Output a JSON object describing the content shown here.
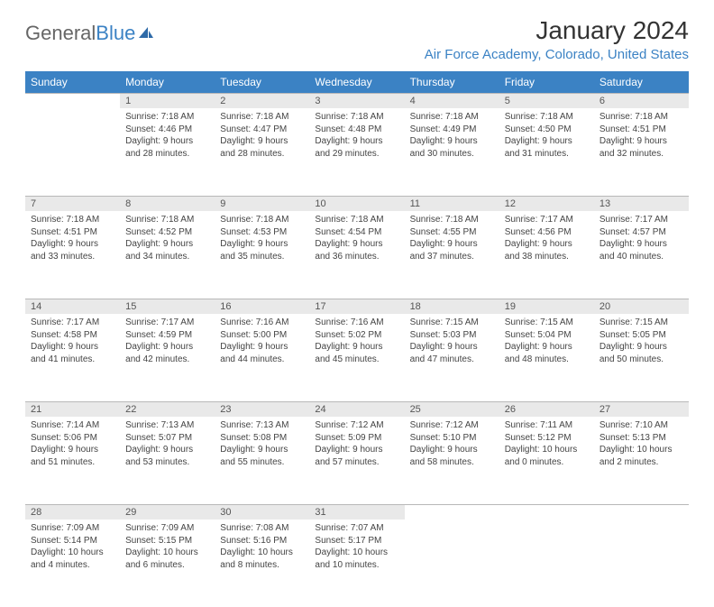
{
  "logo": {
    "part1": "General",
    "part2": "Blue"
  },
  "title": "January 2024",
  "location": "Air Force Academy, Colorado, United States",
  "day_headers": [
    "Sunday",
    "Monday",
    "Tuesday",
    "Wednesday",
    "Thursday",
    "Friday",
    "Saturday"
  ],
  "header_bg": "#3b82c4",
  "daynum_bg": "#e9e9e9",
  "weeks": [
    {
      "nums": [
        "",
        "1",
        "2",
        "3",
        "4",
        "5",
        "6"
      ],
      "cells": [
        {
          "sunrise": "",
          "sunset": "",
          "daylight": ""
        },
        {
          "sunrise": "Sunrise: 7:18 AM",
          "sunset": "Sunset: 4:46 PM",
          "daylight": "Daylight: 9 hours and 28 minutes."
        },
        {
          "sunrise": "Sunrise: 7:18 AM",
          "sunset": "Sunset: 4:47 PM",
          "daylight": "Daylight: 9 hours and 28 minutes."
        },
        {
          "sunrise": "Sunrise: 7:18 AM",
          "sunset": "Sunset: 4:48 PM",
          "daylight": "Daylight: 9 hours and 29 minutes."
        },
        {
          "sunrise": "Sunrise: 7:18 AM",
          "sunset": "Sunset: 4:49 PM",
          "daylight": "Daylight: 9 hours and 30 minutes."
        },
        {
          "sunrise": "Sunrise: 7:18 AM",
          "sunset": "Sunset: 4:50 PM",
          "daylight": "Daylight: 9 hours and 31 minutes."
        },
        {
          "sunrise": "Sunrise: 7:18 AM",
          "sunset": "Sunset: 4:51 PM",
          "daylight": "Daylight: 9 hours and 32 minutes."
        }
      ]
    },
    {
      "nums": [
        "7",
        "8",
        "9",
        "10",
        "11",
        "12",
        "13"
      ],
      "cells": [
        {
          "sunrise": "Sunrise: 7:18 AM",
          "sunset": "Sunset: 4:51 PM",
          "daylight": "Daylight: 9 hours and 33 minutes."
        },
        {
          "sunrise": "Sunrise: 7:18 AM",
          "sunset": "Sunset: 4:52 PM",
          "daylight": "Daylight: 9 hours and 34 minutes."
        },
        {
          "sunrise": "Sunrise: 7:18 AM",
          "sunset": "Sunset: 4:53 PM",
          "daylight": "Daylight: 9 hours and 35 minutes."
        },
        {
          "sunrise": "Sunrise: 7:18 AM",
          "sunset": "Sunset: 4:54 PM",
          "daylight": "Daylight: 9 hours and 36 minutes."
        },
        {
          "sunrise": "Sunrise: 7:18 AM",
          "sunset": "Sunset: 4:55 PM",
          "daylight": "Daylight: 9 hours and 37 minutes."
        },
        {
          "sunrise": "Sunrise: 7:17 AM",
          "sunset": "Sunset: 4:56 PM",
          "daylight": "Daylight: 9 hours and 38 minutes."
        },
        {
          "sunrise": "Sunrise: 7:17 AM",
          "sunset": "Sunset: 4:57 PM",
          "daylight": "Daylight: 9 hours and 40 minutes."
        }
      ]
    },
    {
      "nums": [
        "14",
        "15",
        "16",
        "17",
        "18",
        "19",
        "20"
      ],
      "cells": [
        {
          "sunrise": "Sunrise: 7:17 AM",
          "sunset": "Sunset: 4:58 PM",
          "daylight": "Daylight: 9 hours and 41 minutes."
        },
        {
          "sunrise": "Sunrise: 7:17 AM",
          "sunset": "Sunset: 4:59 PM",
          "daylight": "Daylight: 9 hours and 42 minutes."
        },
        {
          "sunrise": "Sunrise: 7:16 AM",
          "sunset": "Sunset: 5:00 PM",
          "daylight": "Daylight: 9 hours and 44 minutes."
        },
        {
          "sunrise": "Sunrise: 7:16 AM",
          "sunset": "Sunset: 5:02 PM",
          "daylight": "Daylight: 9 hours and 45 minutes."
        },
        {
          "sunrise": "Sunrise: 7:15 AM",
          "sunset": "Sunset: 5:03 PM",
          "daylight": "Daylight: 9 hours and 47 minutes."
        },
        {
          "sunrise": "Sunrise: 7:15 AM",
          "sunset": "Sunset: 5:04 PM",
          "daylight": "Daylight: 9 hours and 48 minutes."
        },
        {
          "sunrise": "Sunrise: 7:15 AM",
          "sunset": "Sunset: 5:05 PM",
          "daylight": "Daylight: 9 hours and 50 minutes."
        }
      ]
    },
    {
      "nums": [
        "21",
        "22",
        "23",
        "24",
        "25",
        "26",
        "27"
      ],
      "cells": [
        {
          "sunrise": "Sunrise: 7:14 AM",
          "sunset": "Sunset: 5:06 PM",
          "daylight": "Daylight: 9 hours and 51 minutes."
        },
        {
          "sunrise": "Sunrise: 7:13 AM",
          "sunset": "Sunset: 5:07 PM",
          "daylight": "Daylight: 9 hours and 53 minutes."
        },
        {
          "sunrise": "Sunrise: 7:13 AM",
          "sunset": "Sunset: 5:08 PM",
          "daylight": "Daylight: 9 hours and 55 minutes."
        },
        {
          "sunrise": "Sunrise: 7:12 AM",
          "sunset": "Sunset: 5:09 PM",
          "daylight": "Daylight: 9 hours and 57 minutes."
        },
        {
          "sunrise": "Sunrise: 7:12 AM",
          "sunset": "Sunset: 5:10 PM",
          "daylight": "Daylight: 9 hours and 58 minutes."
        },
        {
          "sunrise": "Sunrise: 7:11 AM",
          "sunset": "Sunset: 5:12 PM",
          "daylight": "Daylight: 10 hours and 0 minutes."
        },
        {
          "sunrise": "Sunrise: 7:10 AM",
          "sunset": "Sunset: 5:13 PM",
          "daylight": "Daylight: 10 hours and 2 minutes."
        }
      ]
    },
    {
      "nums": [
        "28",
        "29",
        "30",
        "31",
        "",
        "",
        ""
      ],
      "cells": [
        {
          "sunrise": "Sunrise: 7:09 AM",
          "sunset": "Sunset: 5:14 PM",
          "daylight": "Daylight: 10 hours and 4 minutes."
        },
        {
          "sunrise": "Sunrise: 7:09 AM",
          "sunset": "Sunset: 5:15 PM",
          "daylight": "Daylight: 10 hours and 6 minutes."
        },
        {
          "sunrise": "Sunrise: 7:08 AM",
          "sunset": "Sunset: 5:16 PM",
          "daylight": "Daylight: 10 hours and 8 minutes."
        },
        {
          "sunrise": "Sunrise: 7:07 AM",
          "sunset": "Sunset: 5:17 PM",
          "daylight": "Daylight: 10 hours and 10 minutes."
        },
        {
          "sunrise": "",
          "sunset": "",
          "daylight": ""
        },
        {
          "sunrise": "",
          "sunset": "",
          "daylight": ""
        },
        {
          "sunrise": "",
          "sunset": "",
          "daylight": ""
        }
      ]
    }
  ]
}
